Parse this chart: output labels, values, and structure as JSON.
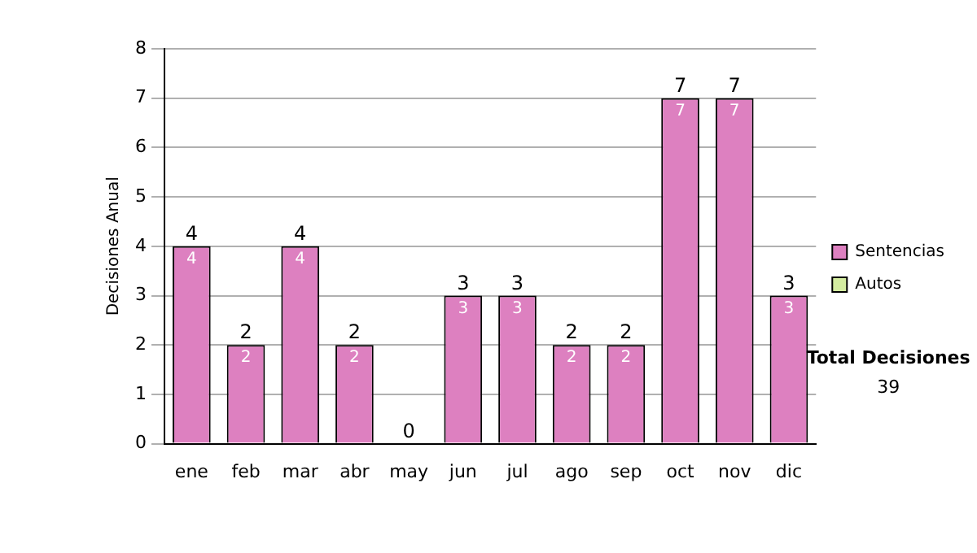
{
  "chart_data": {
    "type": "bar",
    "stacked": true,
    "ylabel": "Decisiones Anual",
    "categories": [
      "ene",
      "feb",
      "mar",
      "abr",
      "may",
      "jun",
      "jul",
      "ago",
      "sep",
      "oct",
      "nov",
      "dic"
    ],
    "series": [
      {
        "name": "Sentencias",
        "color": "#dd80c0",
        "values": [
          4,
          2,
          4,
          2,
          0,
          3,
          3,
          2,
          2,
          7,
          7,
          3
        ],
        "value_labels": [
          "4",
          "2",
          "4",
          "2",
          null,
          "3",
          "3",
          "2",
          "2",
          "7",
          "7",
          "3"
        ]
      },
      {
        "name": "Autos",
        "color": "#d4eca0",
        "values": [
          0,
          0,
          0,
          0,
          0,
          0,
          0,
          0,
          0,
          0,
          0,
          0
        ]
      }
    ],
    "totals": [
      "4",
      "2",
      "4",
      "2",
      "0",
      "3",
      "3",
      "2",
      "2",
      "7",
      "7",
      "3"
    ],
    "ylim": [
      0,
      8
    ],
    "yticks": [
      0,
      1,
      2,
      3,
      4,
      5,
      6,
      7,
      8
    ],
    "grid": "y",
    "legend": "right",
    "annotations": [
      "Total Decisiones",
      "39"
    ]
  }
}
